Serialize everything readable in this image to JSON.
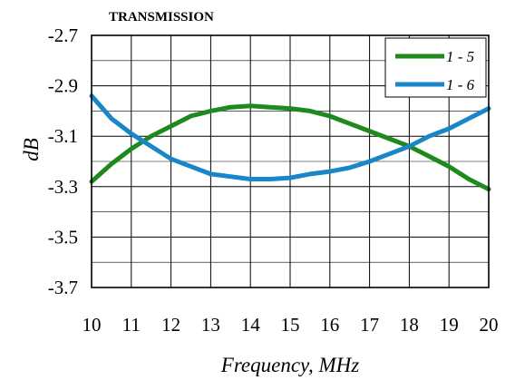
{
  "chart_data": {
    "type": "line",
    "title": "TRANSMISSION",
    "xlabel": "Frequency, MHz",
    "ylabel": "dB",
    "xlim": [
      10,
      20
    ],
    "ylim": [
      -3.7,
      -2.7
    ],
    "x_ticks": [
      "10",
      "11",
      "12",
      "13",
      "14",
      "15",
      "16",
      "17",
      "18",
      "19",
      "20"
    ],
    "y_ticks": [
      "-2.7",
      "-2.9",
      "-3.1",
      "-3.3",
      "-3.5",
      "-3.7"
    ],
    "x_tick_values": [
      10,
      11,
      12,
      13,
      14,
      15,
      16,
      17,
      18,
      19,
      20
    ],
    "y_tick_values": [
      -2.7,
      -2.9,
      -3.1,
      -3.3,
      -3.5,
      -3.7
    ],
    "grid": true,
    "legend_position": "top-right",
    "x": [
      10,
      10.5,
      11,
      11.5,
      12,
      12.5,
      13,
      13.5,
      14,
      14.5,
      15,
      15.5,
      16,
      16.5,
      17,
      17.5,
      18,
      18.5,
      19,
      19.5,
      20
    ],
    "series": [
      {
        "name": "1 - 5",
        "color": "#1e8a1e",
        "values": [
          -3.28,
          -3.21,
          -3.15,
          -3.1,
          -3.06,
          -3.02,
          -3.0,
          -2.985,
          -2.98,
          -2.985,
          -2.99,
          -3.0,
          -3.02,
          -3.05,
          -3.08,
          -3.11,
          -3.14,
          -3.18,
          -3.22,
          -3.27,
          -3.31
        ]
      },
      {
        "name": "1 - 6",
        "color": "#1a86c8",
        "values": [
          -2.94,
          -3.03,
          -3.09,
          -3.14,
          -3.19,
          -3.22,
          -3.25,
          -3.26,
          -3.27,
          -3.27,
          -3.265,
          -3.25,
          -3.24,
          -3.225,
          -3.2,
          -3.17,
          -3.14,
          -3.1,
          -3.07,
          -3.03,
          -2.99
        ]
      }
    ]
  }
}
